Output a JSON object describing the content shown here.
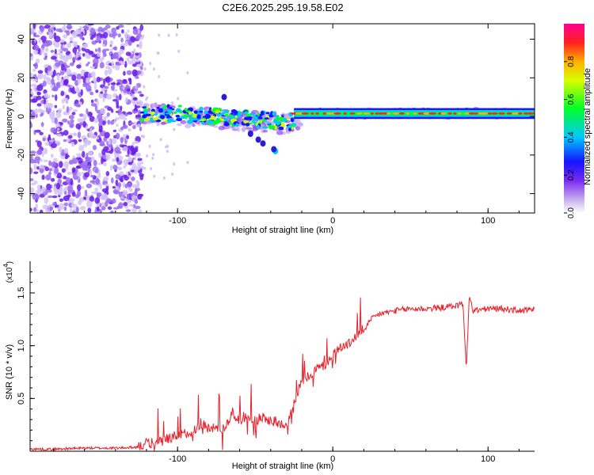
{
  "title": "C2E6.2025.295.19.58.E02",
  "colors": {
    "signal": "#e8202a",
    "axis": "#000000"
  },
  "chart_data": [
    {
      "type": "heatmap",
      "title": "C2E6.2025.295.19.58.E02",
      "xlabel": "Height of straight line (km)",
      "ylabel": "Frequency (Hz)",
      "xlim": [
        -195,
        130
      ],
      "ylim": [
        -50,
        48
      ],
      "x_ticks": [
        -100,
        0,
        100
      ],
      "x_tick_labels": [
        "-100",
        "0",
        "100"
      ],
      "y_ticks": [
        -40,
        -20,
        0,
        20,
        40
      ],
      "y_tick_labels": [
        "-40",
        "-20",
        "0",
        "20",
        "40"
      ],
      "colorbar": {
        "label": "Normalized spectral amplitude",
        "range": [
          0.0,
          1.0
        ],
        "ticks": [
          0.0,
          0.2,
          0.4,
          0.6,
          0.8
        ],
        "tick_labels": [
          "0.0",
          "0.2",
          "0.4",
          "0.6",
          "0.8"
        ]
      },
      "features": {
        "noise_region_x": [
          -195,
          -123
        ],
        "carrier_band_start_x": -123,
        "carrier_frequency_hz": 1.5,
        "strong_signal_start_x": -25,
        "side_blob_x": -37,
        "side_blob_freq_hz": -18
      }
    },
    {
      "type": "line",
      "xlabel": "Height of straight line (km)",
      "ylabel": "SNR (10 * v/v)",
      "y_exponent_label": "(x10",
      "y_exponent_power": "4",
      "y_exponent_close": ")",
      "xlim": [
        -195,
        130
      ],
      "ylim": [
        0,
        1.8
      ],
      "x_ticks": [
        -100,
        0,
        100
      ],
      "x_tick_labels": [
        "-100",
        "0",
        "100"
      ],
      "y_ticks": [
        0.5,
        1.0,
        1.5
      ],
      "y_tick_labels": [
        "0.5",
        "1.0",
        "1.5"
      ],
      "series": [
        {
          "name": "SNR",
          "x": [
            -195,
            -180,
            -160,
            -140,
            -125,
            -110,
            -100,
            -90,
            -85,
            -80,
            -75,
            -70,
            -65,
            -60,
            -55,
            -50,
            -45,
            -40,
            -35,
            -30,
            -25,
            -20,
            -15,
            -10,
            -5,
            0,
            5,
            10,
            15,
            20,
            25,
            30,
            40,
            50,
            60,
            70,
            80,
            84,
            86,
            88,
            90,
            100,
            110,
            120,
            130
          ],
          "values": [
            0.02,
            0.02,
            0.03,
            0.03,
            0.04,
            0.08,
            0.13,
            0.18,
            0.25,
            0.2,
            0.22,
            0.2,
            0.35,
            0.28,
            0.33,
            0.27,
            0.3,
            0.28,
            0.25,
            0.25,
            0.45,
            0.65,
            0.7,
            0.78,
            0.8,
            0.9,
            0.98,
            1.0,
            1.08,
            1.15,
            1.25,
            1.3,
            1.33,
            1.35,
            1.35,
            1.36,
            1.38,
            1.4,
            0.75,
            1.5,
            1.33,
            1.35,
            1.35,
            1.33,
            1.34
          ]
        }
      ]
    }
  ]
}
